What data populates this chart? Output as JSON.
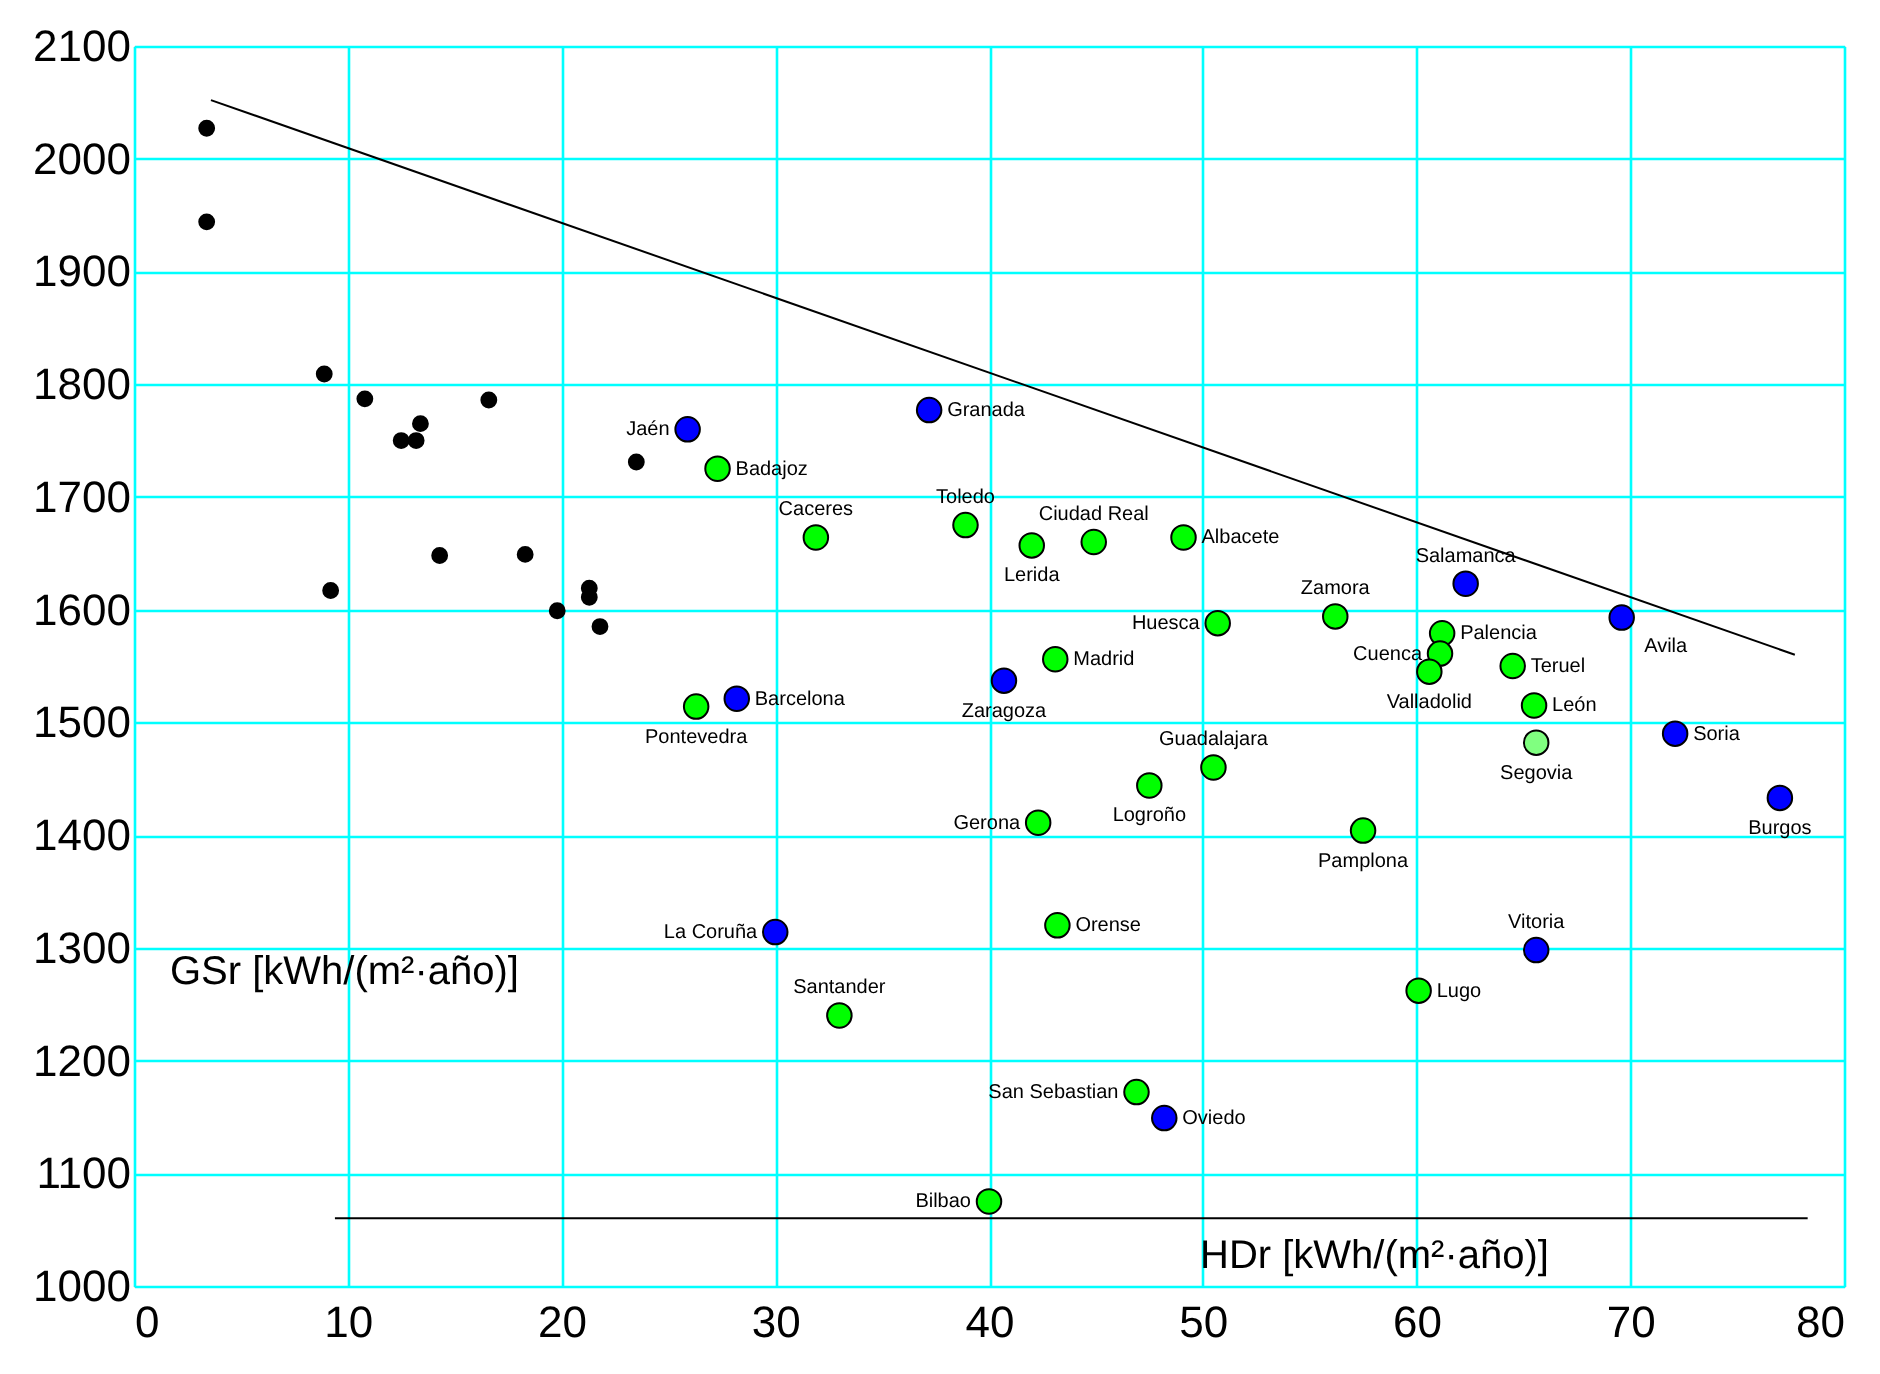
{
  "chart_data": {
    "type": "scatter",
    "xlabel": "HDr [kWh/(m²·año)]",
    "ylabel": "GSr [kWh/(m²·año)]",
    "xlim": [
      0,
      80
    ],
    "xticks": [
      0,
      10,
      20,
      30,
      40,
      50,
      60,
      70,
      80
    ],
    "ylim": [
      1000,
      2100
    ],
    "yticks": [
      1000,
      1100,
      1200,
      1300,
      1400,
      1500,
      1600,
      1700,
      1800,
      1900,
      2000,
      2100
    ],
    "grid": true,
    "marker": "circle",
    "series": [
      {
        "color": "#000000",
        "x": [
          3.4,
          3.4,
          8.9,
          9.2,
          10.8,
          12.5,
          13.2,
          13.4,
          16.6,
          14.3,
          18.3,
          23.5,
          19.8,
          21.3,
          21.3,
          21.8
        ],
        "values": [
          2027,
          1944,
          1809,
          1617,
          1787,
          1750,
          1750,
          1765,
          1786,
          1648,
          1649,
          1731,
          1599,
          1619,
          1611,
          1585
        ]
      },
      {
        "color": "#0000ff",
        "x": [
          25.9,
          28.2,
          37.2,
          40.7,
          30.0,
          62.3,
          69.6,
          72.1,
          77.0,
          65.6,
          48.2
        ],
        "values": [
          1760,
          1521,
          1777,
          1537,
          1314,
          1623,
          1593,
          1490,
          1433,
          1298,
          1149
        ]
      },
      {
        "color": "#00ff00",
        "x": [
          27.3,
          26.3,
          31.9,
          38.9,
          42.0,
          44.9,
          49.1,
          50.7,
          43.1,
          50.5,
          47.5,
          42.3,
          43.2,
          56.2,
          61.2,
          61.1,
          60.6,
          64.5,
          65.5,
          57.5,
          33.0,
          60.1,
          46.9,
          40.0
        ],
        "values": [
          1725,
          1514,
          1664,
          1675,
          1657,
          1660,
          1664,
          1588,
          1556,
          1460,
          1444,
          1411,
          1320,
          1594,
          1579,
          1561,
          1545,
          1550,
          1515,
          1404,
          1240,
          1262,
          1172,
          1075
        ]
      },
      {
        "color": "#80ff80",
        "x": [
          65.6
        ],
        "values": [
          1482
        ]
      },
      {
        "type": "line",
        "color": "#000000",
        "marker": "none",
        "line_style": "solid",
        "x": [
          3.6,
          77.7
        ],
        "values": [
          2052,
          1560
        ]
      },
      {
        "type": "line",
        "color": "#000000",
        "marker": "none",
        "line_style": "solid",
        "x": [
          9.4,
          78.3
        ],
        "values": [
          1060,
          1060
        ]
      }
    ],
    "annotations": [
      {
        "text": "Jaén",
        "x": 25.9,
        "y": 1760
      },
      {
        "text": "Badajoz",
        "x": 27.3,
        "y": 1725
      },
      {
        "text": "Pontevedra",
        "x": 26.3,
        "y": 1514
      },
      {
        "text": "Barcelona",
        "x": 28.2,
        "y": 1521
      },
      {
        "text": "Granada",
        "x": 37.2,
        "y": 1777
      },
      {
        "text": "Caceres",
        "x": 31.9,
        "y": 1664
      },
      {
        "text": "Toledo",
        "x": 38.9,
        "y": 1675
      },
      {
        "text": "Lerida",
        "x": 42.0,
        "y": 1657
      },
      {
        "text": "Ciudad Real",
        "x": 44.9,
        "y": 1660
      },
      {
        "text": "Albacete",
        "x": 49.1,
        "y": 1664
      },
      {
        "text": "Huesca",
        "x": 50.7,
        "y": 1588
      },
      {
        "text": "Madrid",
        "x": 43.1,
        "y": 1556
      },
      {
        "text": "Zaragoza",
        "x": 40.7,
        "y": 1537
      },
      {
        "text": "Guadalajara",
        "x": 50.5,
        "y": 1460
      },
      {
        "text": "Logroño",
        "x": 47.5,
        "y": 1444
      },
      {
        "text": "Gerona",
        "x": 42.3,
        "y": 1411
      },
      {
        "text": "La Coruña",
        "x": 30.0,
        "y": 1314
      },
      {
        "text": "Orense",
        "x": 43.2,
        "y": 1320
      },
      {
        "text": "Salamanca",
        "x": 62.3,
        "y": 1623
      },
      {
        "text": "Zamora",
        "x": 56.2,
        "y": 1594
      },
      {
        "text": "Palencia",
        "x": 61.2,
        "y": 1579
      },
      {
        "text": "Cuenca",
        "x": 61.1,
        "y": 1561
      },
      {
        "text": "Valladolid",
        "x": 60.6,
        "y": 1545
      },
      {
        "text": "Teruel",
        "x": 64.5,
        "y": 1550
      },
      {
        "text": "León",
        "x": 65.5,
        "y": 1515
      },
      {
        "text": "Avila",
        "x": 69.6,
        "y": 1593
      },
      {
        "text": "Soria",
        "x": 72.1,
        "y": 1490
      },
      {
        "text": "Segovia",
        "x": 65.6,
        "y": 1482
      },
      {
        "text": "Burgos",
        "x": 77.0,
        "y": 1433
      },
      {
        "text": "Pamplona",
        "x": 57.5,
        "y": 1404
      },
      {
        "text": "Vitoria",
        "x": 65.6,
        "y": 1298
      },
      {
        "text": "Santander",
        "x": 33.0,
        "y": 1240
      },
      {
        "text": "Lugo",
        "x": 60.1,
        "y": 1262
      },
      {
        "text": "San Sebastian",
        "x": 46.9,
        "y": 1172
      },
      {
        "text": "Oviedo",
        "x": 48.2,
        "y": 1149
      },
      {
        "text": "Bilbao",
        "x": 40.0,
        "y": 1075
      }
    ]
  }
}
